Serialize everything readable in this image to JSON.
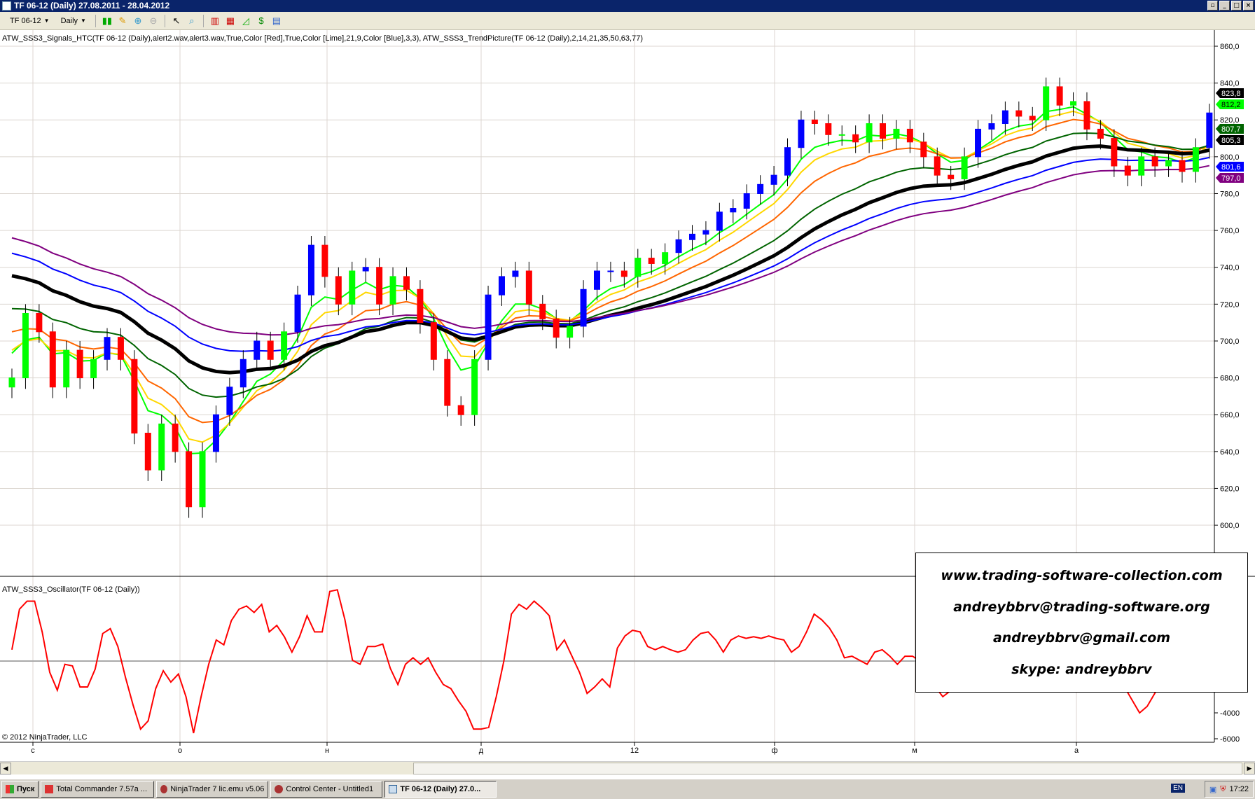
{
  "window": {
    "title": "TF 06-12 (Daily)  27.08.2011 - 28.04.2012"
  },
  "toolbar": {
    "instrument": "TF 06-12",
    "period": "Daily"
  },
  "indicators": {
    "price_label": "ATW_SSS3_Signals_HTC(TF 06-12 (Daily),alert2.wav,alert3.wav,True,Color [Red],True,Color [Lime],21,9,Color [Blue],3,3),  ATW_SSS3_TrendPicture(TF 06-12 (Daily),2,14,21,35,50,63,77)",
    "osc_label": "ATW_SSS3_Oscillator(TF 06-12 (Daily))"
  },
  "copyright": "© 2012 NinjaTrader, LLC",
  "watermark": [
    "www.trading-software-collection.com",
    "andreybbrv@trading-software.org",
    "andreybbrv@gmail.com",
    "skype: andreybbrv"
  ],
  "x_labels": [
    "с",
    "о",
    "н",
    "д",
    "12",
    "ф",
    "м",
    "а"
  ],
  "taskbar": {
    "start": "Пуск",
    "tasks": [
      "Total Commander 7.57a ...",
      "NinjaTrader 7 lic.emu v5.06",
      "Control Center - Untitled1",
      "TF 06-12 (Daily)  27.0..."
    ],
    "lang": "EN",
    "clock": "17:22"
  },
  "colors": {
    "up": "#00ff00",
    "down": "#ff0000",
    "signal": "#0000ff",
    "ma": [
      "#00ff00",
      "#ffd700",
      "#ff6600",
      "#006400",
      "#000000",
      "#0000ff",
      "#800080"
    ],
    "osc": "#ff0000"
  },
  "chart_data": [
    {
      "type": "candlestick",
      "ylim": [
        590,
        870
      ],
      "yticks": [
        600,
        620,
        640,
        660,
        680,
        700,
        720,
        740,
        760,
        780,
        800,
        820,
        840,
        860
      ],
      "ma_periods": [
        9,
        14,
        21,
        35,
        50,
        63,
        77
      ],
      "last_values": [
        {
          "label": "823,8",
          "color": "#000000"
        },
        {
          "label": "812,2",
          "color": "#00ff00"
        },
        {
          "label": "807,7",
          "color": "#006400"
        },
        {
          "label": "805,3",
          "color": "#000000"
        },
        {
          "label": "801,6",
          "color": "#0000ff"
        },
        {
          "label": "797,0",
          "color": "#800080"
        }
      ],
      "closes": [
        680,
        715,
        705,
        675,
        695,
        680,
        690,
        702,
        690,
        650,
        630,
        655,
        640,
        610,
        640,
        660,
        675,
        690,
        700,
        690,
        705,
        725,
        752,
        735,
        720,
        738,
        740,
        720,
        735,
        728,
        710,
        690,
        665,
        660,
        690,
        725,
        735,
        738,
        720,
        712,
        702,
        708,
        728,
        738,
        738,
        735,
        745,
        742,
        748,
        755,
        758,
        760,
        770,
        772,
        780,
        785,
        790,
        805,
        820,
        818,
        812,
        812,
        808,
        818,
        810,
        815,
        808,
        800,
        790,
        788,
        800,
        815,
        818,
        825,
        822,
        820,
        838,
        828,
        830,
        815,
        810,
        795,
        790,
        800,
        795,
        798,
        792,
        805,
        823.8
      ]
    },
    {
      "type": "line",
      "name": "",
      "yticks": [
        -4000,
        -6000
      ],
      "zero_line": 0,
      "values": [
        875,
        4000,
        4625,
        4625,
        2250,
        -875,
        -2250,
        -250,
        -375,
        -2000,
        -2000,
        -625,
        2125,
        2500,
        1125,
        -1250,
        -3375,
        -5250,
        -4625,
        -2125,
        -750,
        -1625,
        -1000,
        -2750,
        -5560,
        -2750,
        -250,
        1625,
        1250,
        3125,
        4000,
        4250,
        3750,
        4375,
        2250,
        2750,
        1875,
        688,
        1875,
        3500,
        2250,
        2250,
        5375,
        5500,
        3188,
        63,
        -250,
        1125,
        1125,
        1313,
        -563,
        -1813,
        -250,
        250,
        -250,
        250,
        -875,
        -1813,
        -2125,
        -3063,
        -3875,
        -5250,
        -5250,
        -5125,
        -2750,
        0,
        3625,
        4375,
        4000,
        4625,
        4125,
        3500,
        875,
        1625,
        375,
        -875,
        -2500,
        -2000,
        -1375,
        -2000,
        1000,
        1938,
        2375,
        2250,
        1125,
        875,
        1125,
        875,
        688,
        875,
        1625,
        2125,
        2250,
        1625,
        688,
        1625,
        1938,
        1750,
        1875,
        1750,
        1938,
        1750,
        1625,
        688,
        1125,
        2250,
        3625,
        3188,
        2563,
        1625,
        250,
        375,
        63,
        -250,
        688,
        875,
        375,
        -250,
        375,
        375,
        0,
        -1000,
        -2000,
        -2750,
        -2300,
        -1000,
        0,
        1000,
        1500,
        1000,
        500,
        0,
        500,
        1000,
        1500,
        2000,
        1500,
        1000,
        500,
        0,
        -500,
        -1000,
        -500,
        0,
        500,
        0,
        -1000,
        -2000,
        -3000,
        -4000,
        -3500,
        -2500,
        -1500,
        -500,
        0,
        500,
        1000,
        1500,
        2000,
        2500
      ]
    }
  ]
}
